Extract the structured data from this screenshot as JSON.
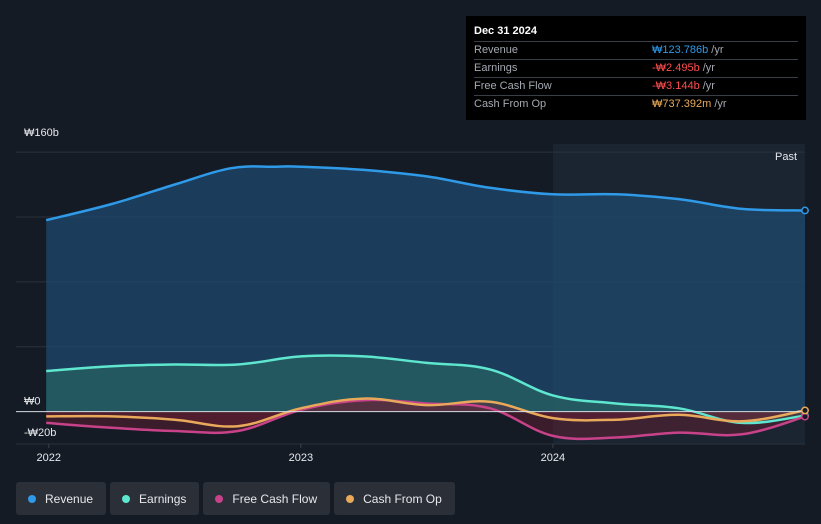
{
  "tooltip": {
    "date": "Dec 31 2024",
    "rows": [
      {
        "label": "Revenue",
        "value": "₩123.786b",
        "unit": "/yr",
        "color": "#2f9ae8"
      },
      {
        "label": "Earnings",
        "value": "-₩2.495b",
        "unit": "/yr",
        "color": "#ff4d4d"
      },
      {
        "label": "Free Cash Flow",
        "value": "-₩3.144b",
        "unit": "/yr",
        "color": "#ff4d4d"
      },
      {
        "label": "Cash From Op",
        "value": "₩737.392m",
        "unit": "/yr",
        "color": "#e8a95a"
      }
    ]
  },
  "legend": [
    {
      "label": "Revenue",
      "color": "#2f9ae8"
    },
    {
      "label": "Earnings",
      "color": "#5ee6cf"
    },
    {
      "label": "Free Cash Flow",
      "color": "#c8428a"
    },
    {
      "label": "Cash From Op",
      "color": "#e8a95a"
    }
  ],
  "chart_data": {
    "type": "area",
    "title": "",
    "xlabel": "",
    "ylabel": "",
    "ylim": [
      -20,
      160
    ],
    "xlim": [
      2021.87,
      2025.0
    ],
    "y_tick_labels": [
      {
        "value": 160,
        "label": "₩160b"
      },
      {
        "value": 0,
        "label": "₩0"
      },
      {
        "value": -20,
        "label": "-₩20b"
      }
    ],
    "x_tick_labels": [
      {
        "value": 2022,
        "label": "2022"
      },
      {
        "value": 2023,
        "label": "2023"
      },
      {
        "value": 2024,
        "label": "2024"
      }
    ],
    "past_label": "Past",
    "past_start": 2024.0,
    "series": [
      {
        "name": "Revenue",
        "color": "#2f9ae8",
        "fill": "#1d4a6e",
        "x": [
          2021.99,
          2022.25,
          2022.5,
          2022.72,
          2022.9,
          2023.0,
          2023.25,
          2023.5,
          2023.75,
          2024.0,
          2024.25,
          2024.5,
          2024.75,
          2025.0
        ],
        "values": [
          118,
          128,
          140,
          150,
          151,
          151,
          149,
          145,
          138,
          134,
          134,
          131,
          125,
          124
        ]
      },
      {
        "name": "Earnings",
        "color": "#5ee6cf",
        "fill": "#2a6b64",
        "x": [
          2021.99,
          2022.25,
          2022.5,
          2022.75,
          2023.0,
          2023.25,
          2023.5,
          2023.75,
          2024.0,
          2024.25,
          2024.5,
          2024.75,
          2025.0
        ],
        "values": [
          25,
          28,
          29,
          29,
          34,
          34,
          30,
          26,
          10,
          5,
          2,
          -7,
          -2.5
        ]
      },
      {
        "name": "Free Cash Flow",
        "color": "#c8428a",
        "fill": "#6b1f33",
        "x": [
          2021.99,
          2022.25,
          2022.5,
          2022.75,
          2023.0,
          2023.25,
          2023.5,
          2023.75,
          2024.0,
          2024.25,
          2024.5,
          2024.75,
          2025.0
        ],
        "values": [
          -7,
          -10,
          -12,
          -12,
          1,
          7,
          5,
          2,
          -15,
          -16,
          -13,
          -14,
          -3.1
        ]
      },
      {
        "name": "Cash From Op",
        "color": "#e8a95a",
        "fill": "#6b1f33",
        "x": [
          2021.99,
          2022.25,
          2022.5,
          2022.75,
          2023.0,
          2023.25,
          2023.5,
          2023.75,
          2024.0,
          2024.25,
          2024.5,
          2024.75,
          2025.0
        ],
        "values": [
          -3,
          -3,
          -5,
          -9,
          2,
          8,
          4,
          6,
          -4,
          -5,
          -2,
          -6,
          0.7
        ]
      }
    ]
  }
}
